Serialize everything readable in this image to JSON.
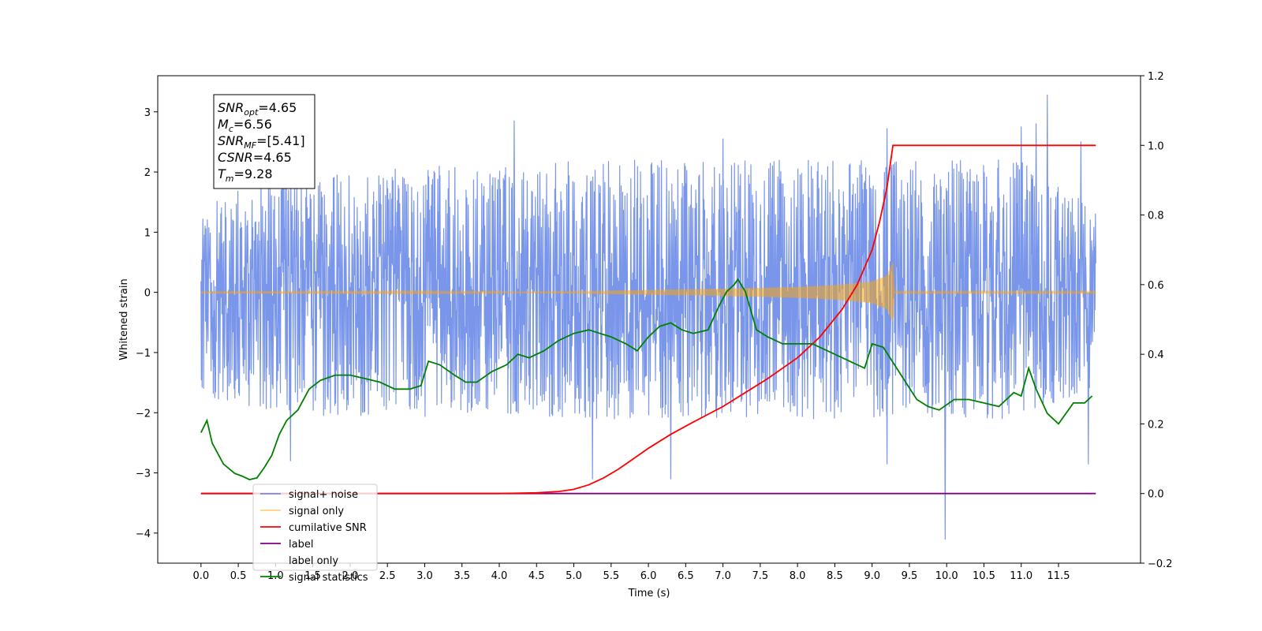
{
  "chart_data": {
    "type": "line",
    "title": "",
    "xlabel": "Time (s)",
    "ylabel": "Whitened strain",
    "xlim": [
      -0.58,
      12.6
    ],
    "ylim": [
      -4.5,
      3.6
    ],
    "y2lim": [
      -0.2,
      1.2
    ],
    "x_ticks": [
      0.0,
      0.5,
      1.0,
      1.5,
      2.0,
      2.5,
      3.0,
      3.5,
      4.0,
      4.5,
      5.0,
      5.5,
      6.0,
      6.5,
      7.0,
      7.5,
      8.0,
      8.5,
      9.0,
      9.5,
      10.0,
      10.5,
      11.0,
      11.5
    ],
    "x_tick_labels": [
      "0.0",
      "0.5",
      "1.0",
      "1.5",
      "2.0",
      "2.5",
      "3.0",
      "3.5",
      "4.0",
      "4.5",
      "5.0",
      "5.5",
      "6.0",
      "6.5",
      "7.0",
      "7.5",
      "8.0",
      "8.5",
      "9.0",
      "9.5",
      "10.0",
      "10.5",
      "11.0",
      "11.5"
    ],
    "y_ticks": [
      -4,
      -3,
      -2,
      -1,
      0,
      1,
      2,
      3
    ],
    "y_tick_labels": [
      "−4",
      "−3",
      "−2",
      "−1",
      "0",
      "1",
      "2",
      "3"
    ],
    "y2_ticks": [
      -0.2,
      0.0,
      0.2,
      0.4,
      0.6,
      0.8,
      1.0,
      1.2
    ],
    "y2_tick_labels": [
      "−0.2",
      "0.0",
      "0.2",
      "0.4",
      "0.6",
      "0.8",
      "1.0",
      "1.2"
    ],
    "grid": false,
    "legend_position": "lower-left",
    "annotation": {
      "lines": [
        {
          "base": "SNR",
          "sub": "opt",
          "value": "=4.65"
        },
        {
          "base": "M",
          "sub": "c",
          "value": "=6.56"
        },
        {
          "base": "SNR",
          "sub": "MF",
          "value": "=[5.41]"
        },
        {
          "base": "CSNR",
          "sub": "",
          "value": "=4.65"
        },
        {
          "base": "T",
          "sub": "m",
          "value": "=9.28"
        }
      ]
    },
    "series": [
      {
        "name": "signal+ noise",
        "color": "#4169e1",
        "axis": "left",
        "kind": "noise_band",
        "x_range": [
          0.0,
          12.0
        ],
        "envelope_upper": [
          [
            0.0,
            1.5
          ],
          [
            1.0,
            2.0
          ],
          [
            2.0,
            2.0
          ],
          [
            3.0,
            2.1
          ],
          [
            4.0,
            2.1
          ],
          [
            5.0,
            2.2
          ],
          [
            6.0,
            2.2
          ],
          [
            7.0,
            2.2
          ],
          [
            8.0,
            2.2
          ],
          [
            9.0,
            2.2
          ],
          [
            10.0,
            2.2
          ],
          [
            11.0,
            2.2
          ],
          [
            12.0,
            1.4
          ]
        ],
        "envelope_lower": [
          [
            0.0,
            -1.7
          ],
          [
            1.0,
            -2.0
          ],
          [
            2.0,
            -2.1
          ],
          [
            3.0,
            -2.1
          ],
          [
            4.0,
            -2.0
          ],
          [
            5.0,
            -2.1
          ],
          [
            6.0,
            -2.1
          ],
          [
            7.0,
            -2.1
          ],
          [
            8.0,
            -2.1
          ],
          [
            9.0,
            -2.1
          ],
          [
            10.0,
            -2.1
          ],
          [
            11.0,
            -2.1
          ],
          [
            12.0,
            -1.6
          ]
        ],
        "spikes": [
          [
            4.2,
            2.85
          ],
          [
            7.0,
            2.55
          ],
          [
            9.2,
            2.72
          ],
          [
            11.0,
            2.75
          ],
          [
            11.2,
            2.8
          ],
          [
            11.35,
            3.28
          ],
          [
            11.8,
            2.5
          ],
          [
            1.2,
            -2.8
          ],
          [
            5.25,
            -3.1
          ],
          [
            6.3,
            -3.1
          ],
          [
            9.2,
            -2.85
          ],
          [
            9.98,
            -4.1
          ],
          [
            11.9,
            -2.85
          ]
        ]
      },
      {
        "name": "signal only",
        "color": "#ffa500",
        "axis": "left",
        "kind": "chirp",
        "x_range": [
          0.0,
          12.0
        ],
        "amplitude": [
          [
            0.0,
            0.005
          ],
          [
            4.0,
            0.01
          ],
          [
            5.0,
            0.02
          ],
          [
            6.0,
            0.04
          ],
          [
            7.0,
            0.06
          ],
          [
            8.0,
            0.09
          ],
          [
            8.5,
            0.12
          ],
          [
            9.0,
            0.18
          ],
          [
            9.2,
            0.28
          ],
          [
            9.28,
            0.5
          ],
          [
            9.3,
            0.01
          ],
          [
            12.0,
            0.01
          ]
        ]
      },
      {
        "name": "cumilative SNR",
        "color": "#ff0000",
        "axis": "right",
        "x": [
          0.0,
          1.0,
          2.0,
          3.0,
          4.0,
          4.5,
          4.8,
          5.0,
          5.2,
          5.4,
          5.6,
          5.8,
          6.0,
          6.3,
          6.6,
          7.0,
          7.3,
          7.6,
          8.0,
          8.3,
          8.6,
          8.8,
          9.0,
          9.1,
          9.2,
          9.28,
          12.0
        ],
        "y": [
          0.0,
          0.0,
          0.0,
          0.0,
          0.0,
          0.002,
          0.006,
          0.012,
          0.025,
          0.045,
          0.07,
          0.1,
          0.13,
          0.17,
          0.205,
          0.25,
          0.29,
          0.33,
          0.39,
          0.45,
          0.53,
          0.6,
          0.7,
          0.78,
          0.88,
          1.0,
          1.0
        ]
      },
      {
        "name": "label",
        "color": "#800080",
        "axis": "right",
        "x": [
          0.0,
          12.0
        ],
        "y": [
          0.0,
          0.0
        ]
      },
      {
        "name": "label only",
        "color": "#ffffff",
        "axis": "right",
        "x": [],
        "y": []
      },
      {
        "name": "signal statistics",
        "color": "#008000",
        "axis": "right",
        "x": [
          0.0,
          0.08,
          0.15,
          0.3,
          0.45,
          0.55,
          0.65,
          0.75,
          0.85,
          0.95,
          1.05,
          1.15,
          1.3,
          1.45,
          1.6,
          1.8,
          2.0,
          2.2,
          2.4,
          2.6,
          2.8,
          2.95,
          3.05,
          3.2,
          3.4,
          3.55,
          3.7,
          3.9,
          4.1,
          4.25,
          4.4,
          4.6,
          4.8,
          5.0,
          5.2,
          5.35,
          5.5,
          5.7,
          5.85,
          6.0,
          6.15,
          6.3,
          6.45,
          6.6,
          6.8,
          6.95,
          7.05,
          7.15,
          7.2,
          7.3,
          7.45,
          7.6,
          7.8,
          8.0,
          8.2,
          8.4,
          8.6,
          8.8,
          8.9,
          9.0,
          9.15,
          9.3,
          9.45,
          9.6,
          9.75,
          9.9,
          10.1,
          10.3,
          10.5,
          10.7,
          10.9,
          11.0,
          11.1,
          11.2,
          11.35,
          11.5,
          11.7,
          11.85,
          11.95
        ],
        "y": [
          0.175,
          0.21,
          0.145,
          0.085,
          0.058,
          0.05,
          0.04,
          0.045,
          0.075,
          0.11,
          0.17,
          0.21,
          0.24,
          0.3,
          0.325,
          0.34,
          0.34,
          0.33,
          0.32,
          0.3,
          0.3,
          0.31,
          0.38,
          0.37,
          0.34,
          0.32,
          0.32,
          0.35,
          0.37,
          0.4,
          0.39,
          0.41,
          0.44,
          0.46,
          0.47,
          0.46,
          0.45,
          0.43,
          0.41,
          0.45,
          0.48,
          0.49,
          0.47,
          0.46,
          0.47,
          0.54,
          0.58,
          0.6,
          0.615,
          0.58,
          0.47,
          0.45,
          0.43,
          0.43,
          0.43,
          0.41,
          0.39,
          0.37,
          0.36,
          0.43,
          0.42,
          0.37,
          0.32,
          0.27,
          0.25,
          0.24,
          0.27,
          0.27,
          0.26,
          0.25,
          0.29,
          0.28,
          0.36,
          0.3,
          0.23,
          0.2,
          0.26,
          0.26,
          0.28
        ]
      }
    ]
  }
}
